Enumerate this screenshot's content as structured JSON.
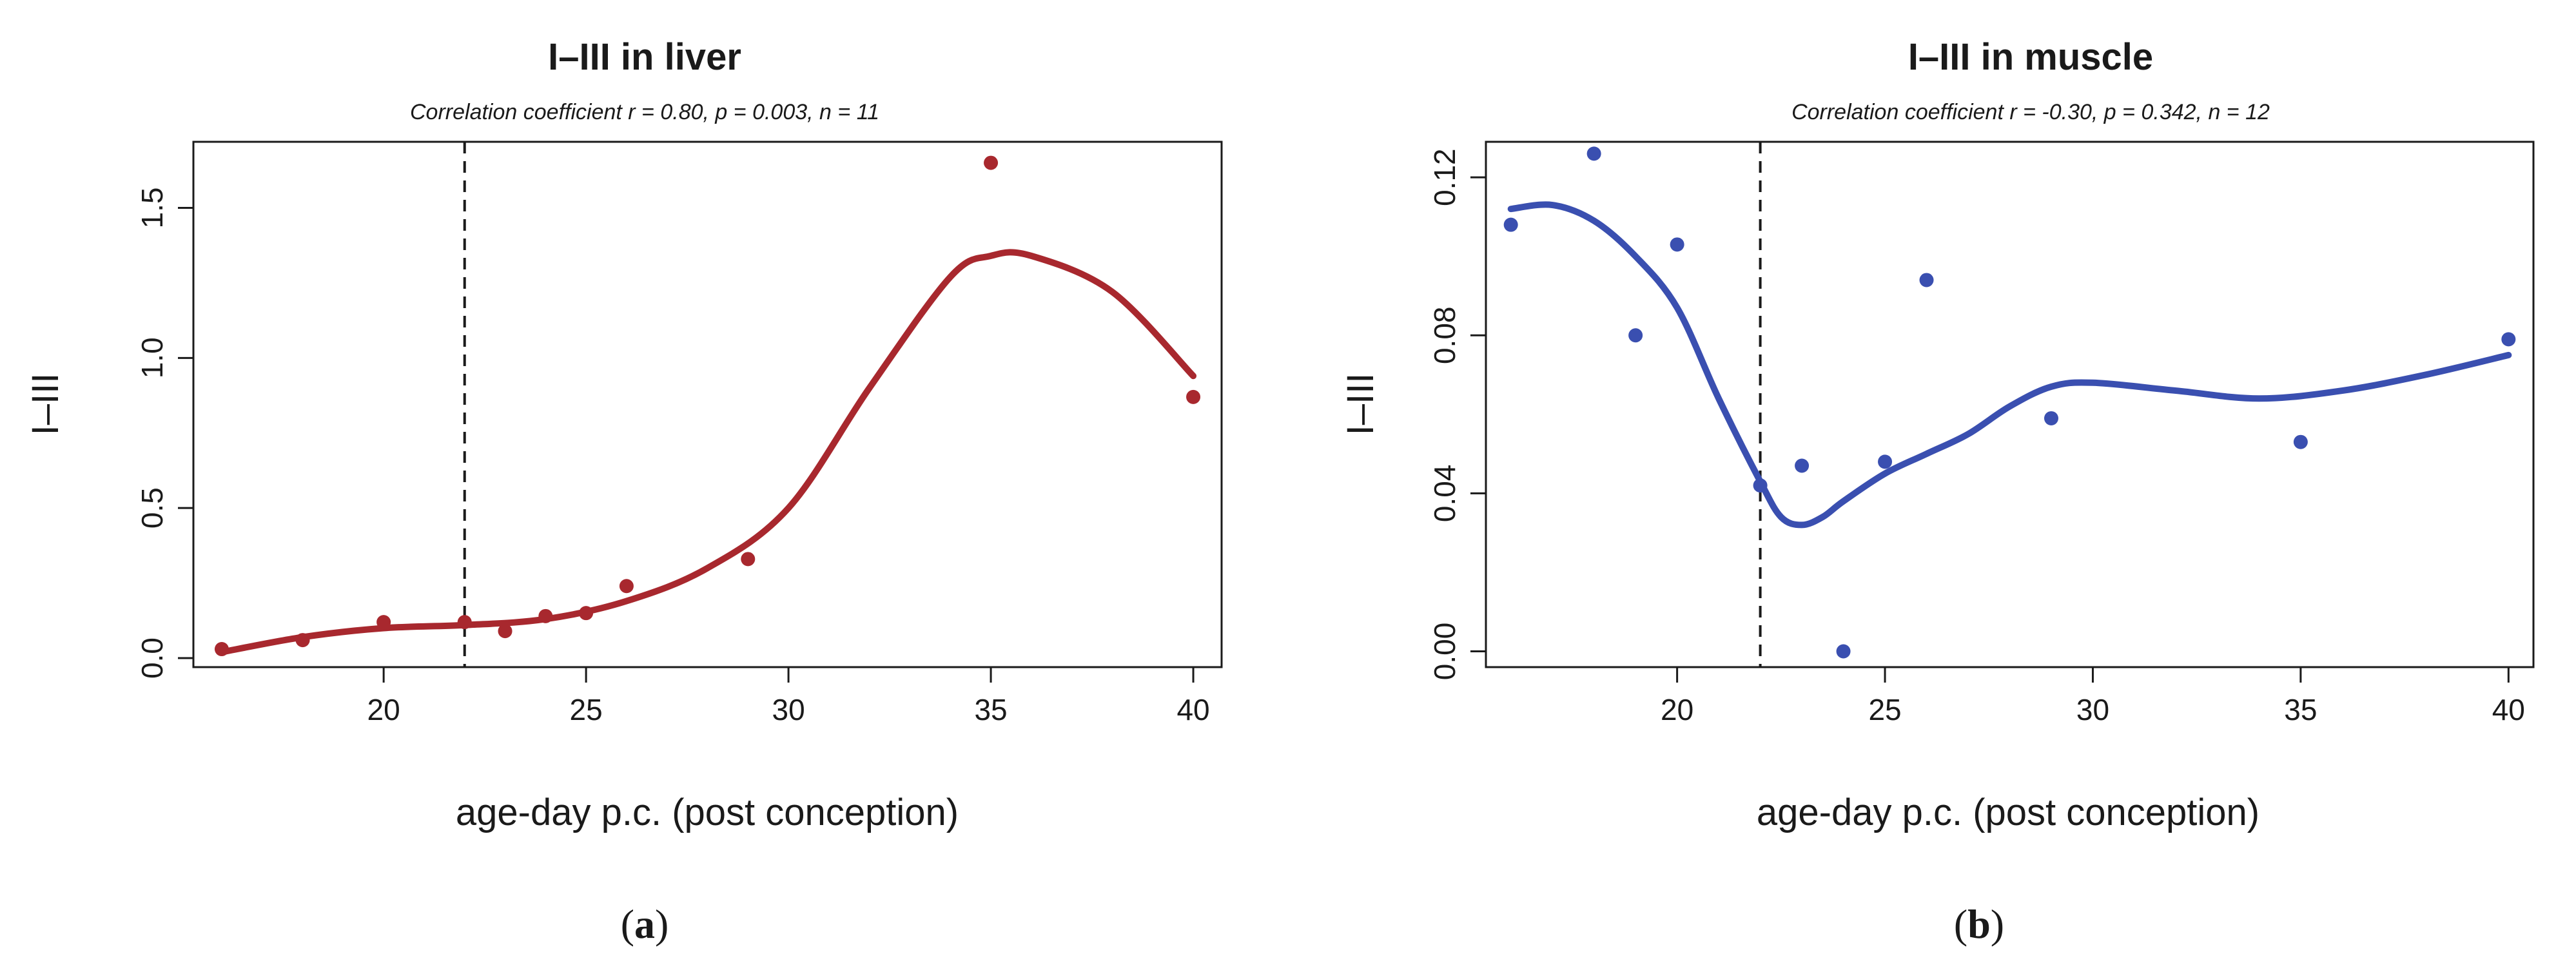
{
  "chart_data": [
    {
      "type": "scatter",
      "panel_label": "a",
      "title": "I–III in liver",
      "subtitle": "Correlation coefficient r = 0.80, p = 0.003, n = 11",
      "xlabel": "age-day p.c. (post conception)",
      "ylabel": "I–III",
      "xlim": [
        15.3,
        40.7
      ],
      "ylim": [
        -0.03,
        1.72
      ],
      "xticks": [
        20,
        25,
        30,
        35,
        40
      ],
      "xtick_labels": [
        "20",
        "25",
        "30",
        "35",
        "40"
      ],
      "yticks": [
        0.0,
        0.5,
        1.0,
        1.5
      ],
      "ytick_labels": [
        "0.0",
        "0.5",
        "1.0",
        "1.5"
      ],
      "vline_x": 22,
      "color": "#a8282e",
      "points": {
        "x": [
          16,
          18,
          20,
          22,
          23,
          24,
          25,
          26,
          29,
          35,
          40
        ],
        "y": [
          0.03,
          0.06,
          0.12,
          0.12,
          0.09,
          0.14,
          0.15,
          0.24,
          0.33,
          1.65,
          0.87
        ]
      },
      "trend": {
        "x": [
          16,
          18,
          20,
          22,
          24,
          26,
          28,
          30,
          32,
          34,
          35,
          36,
          38,
          40
        ],
        "y": [
          0.02,
          0.07,
          0.1,
          0.11,
          0.13,
          0.19,
          0.3,
          0.5,
          0.9,
          1.27,
          1.34,
          1.34,
          1.22,
          0.94
        ]
      }
    },
    {
      "type": "scatter",
      "panel_label": "b",
      "title": "I–III in muscle",
      "subtitle": "Correlation coefficient r = -0.30, p = 0.342, n = 12",
      "xlabel": "age-day p.c. (post conception)",
      "ylabel": "I–III",
      "xlim": [
        15.4,
        40.6
      ],
      "ylim": [
        -0.004,
        0.129
      ],
      "xticks": [
        20,
        25,
        30,
        35,
        40
      ],
      "xtick_labels": [
        "20",
        "25",
        "30",
        "35",
        "40"
      ],
      "yticks": [
        0.0,
        0.04,
        0.08,
        0.12
      ],
      "ytick_labels": [
        "0.00",
        "0.04",
        "0.08",
        "0.12"
      ],
      "vline_x": 22,
      "color": "#3a4fb0",
      "points": {
        "x": [
          16,
          18,
          19,
          20,
          22,
          23,
          24,
          25,
          26,
          29,
          35,
          40
        ],
        "y": [
          0.108,
          0.126,
          0.08,
          0.103,
          0.042,
          0.047,
          0.0,
          0.048,
          0.094,
          0.059,
          0.053,
          0.079
        ]
      },
      "trend": {
        "x": [
          16,
          17,
          18,
          19,
          20,
          21,
          22,
          22.5,
          23,
          23.5,
          24,
          25,
          26,
          27,
          28,
          29,
          30,
          32,
          34,
          36,
          38,
          40
        ],
        "y": [
          0.112,
          0.113,
          0.109,
          0.1,
          0.087,
          0.064,
          0.043,
          0.034,
          0.032,
          0.034,
          0.038,
          0.045,
          0.05,
          0.055,
          0.062,
          0.067,
          0.068,
          0.066,
          0.064,
          0.066,
          0.07,
          0.075
        ]
      }
    }
  ]
}
